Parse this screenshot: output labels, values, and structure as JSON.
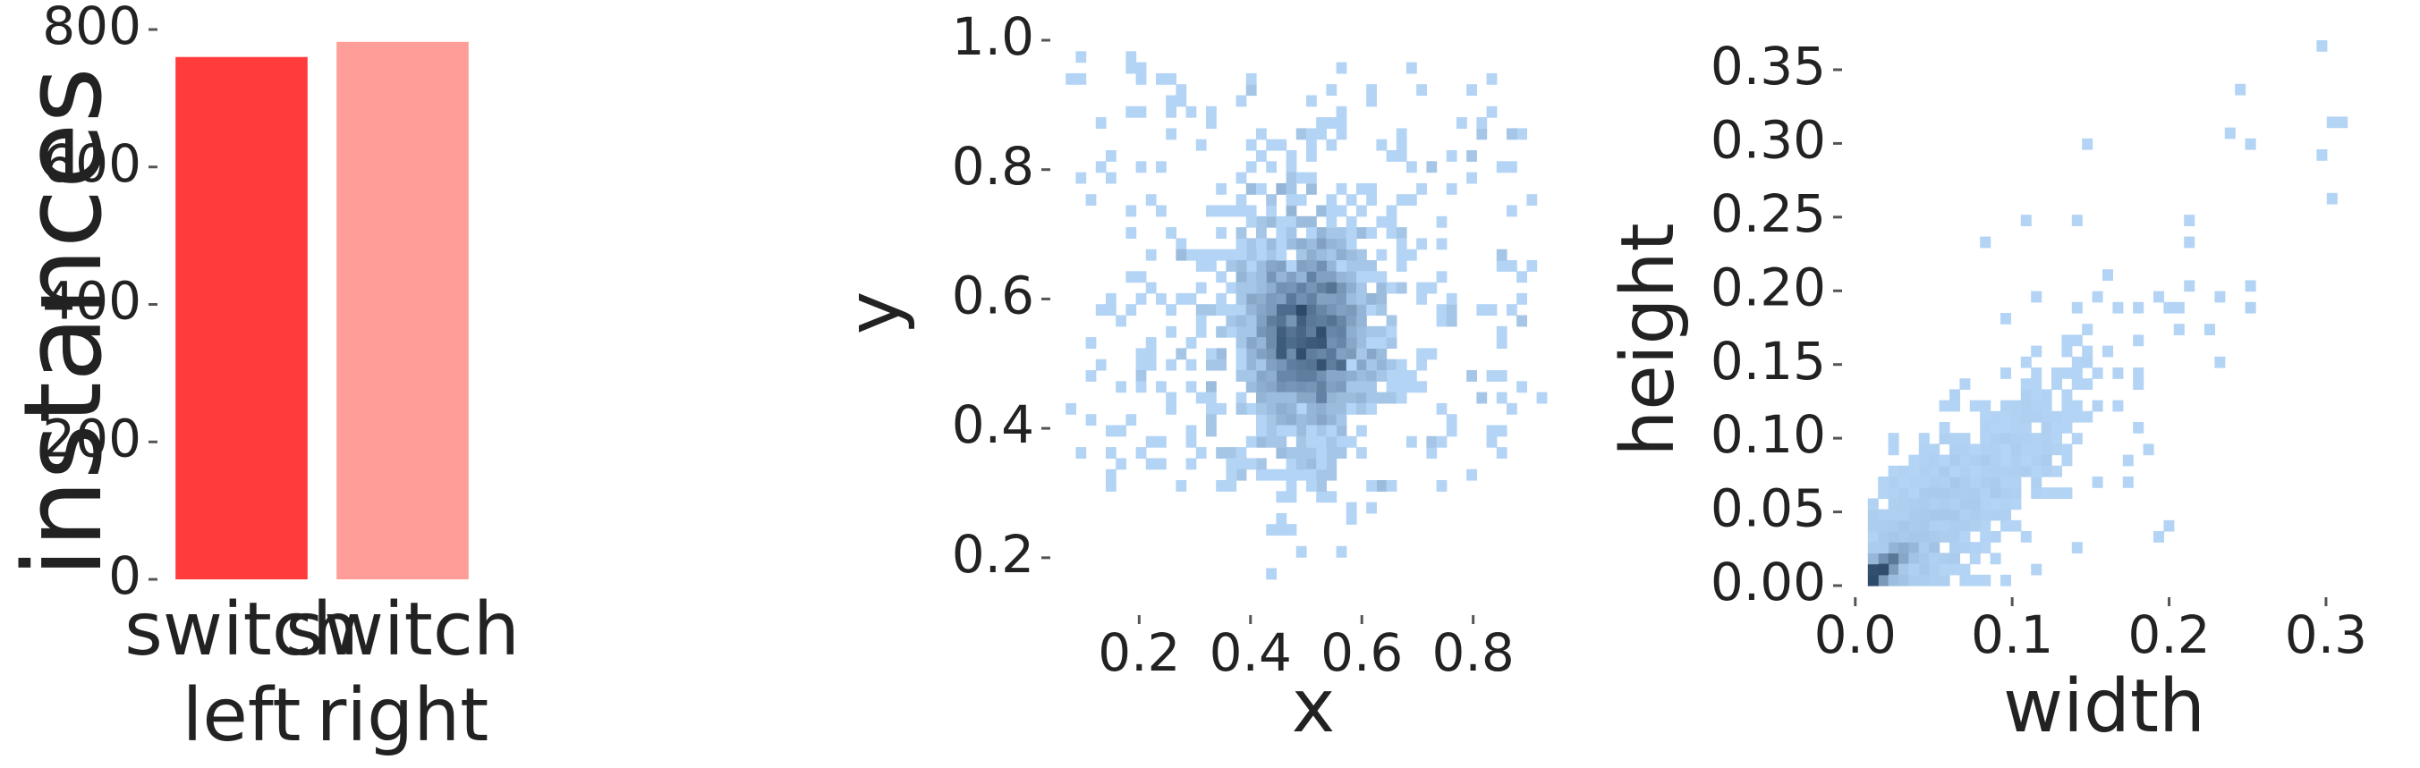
{
  "chart_data": [
    {
      "type": "bar",
      "categories": [
        [
          "switch",
          "left"
        ],
        [
          "switch",
          "right"
        ]
      ],
      "values": [
        760,
        782
      ],
      "colors": [
        "#ff3b3b",
        "#ff9e98"
      ],
      "ylabel": "instances",
      "xlabel": "",
      "ylim": [
        0,
        800
      ],
      "yticks": [
        0,
        200,
        400,
        600,
        800
      ],
      "grid": false
    },
    {
      "type": "heatmap",
      "subtype": "2d-histogram",
      "xlabel": "x",
      "ylabel": "y",
      "xlim": [
        0.05,
        0.95
      ],
      "ylim": [
        0.15,
        1.0
      ],
      "xticks": [
        0.2,
        0.4,
        0.6,
        0.8
      ],
      "yticks": [
        0.2,
        0.4,
        0.6,
        0.8,
        1.0
      ],
      "bins": 50,
      "density_peak": [
        0.5,
        0.55
      ],
      "color_low": "#b3d4f5",
      "color_high": "#2e4a6b",
      "grid": false
    },
    {
      "type": "heatmap",
      "subtype": "2d-histogram",
      "xlabel": "width",
      "ylabel": "height",
      "xlim": [
        -0.005,
        0.32
      ],
      "ylim": [
        0.0,
        0.37
      ],
      "xticks": [
        0.0,
        0.1,
        0.2,
        0.3
      ],
      "yticks": [
        0.0,
        0.05,
        0.1,
        0.15,
        0.2,
        0.25,
        0.3,
        0.35
      ],
      "bins": 50,
      "density_peak": [
        0.02,
        0.015
      ],
      "color_low": "#b3d4f5",
      "color_high": "#2e4a6b",
      "grid": false
    }
  ]
}
